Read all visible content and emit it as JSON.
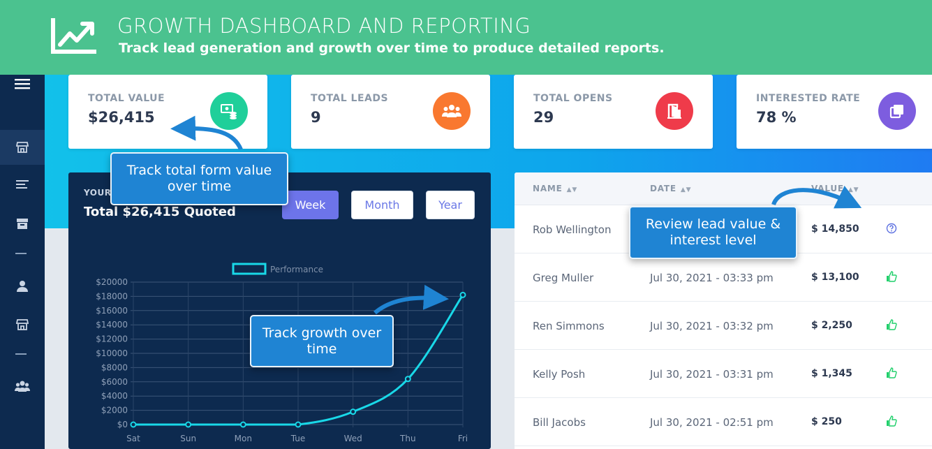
{
  "banner": {
    "title": "GROWTH DASHBOARD AND REPORTING",
    "subtitle": "Track lead generation and growth over time to produce detailed reports.",
    "icon": "chart-growth-icon"
  },
  "sidebar": {
    "items": [
      "menu-icon",
      "store-icon",
      "list-icon",
      "archive-icon",
      "user-icon",
      "store-icon",
      "users-icon"
    ],
    "active_index": 1
  },
  "stats": [
    {
      "label": "TOTAL VALUE",
      "value": "$26,415",
      "icon": "money-stack-icon",
      "color": "#1fcf9a"
    },
    {
      "label": "TOTAL LEADS",
      "value": "9",
      "icon": "users-icon",
      "color": "#f9782f"
    },
    {
      "label": "TOTAL OPENS",
      "value": "29",
      "icon": "door-open-icon",
      "color": "#ef3b4a"
    },
    {
      "label": "INTERESTED RATE",
      "value": "78 %",
      "icon": "copy-icon",
      "color": "#7d5ddf"
    }
  ],
  "chart_panel": {
    "kicker": "YOUR",
    "heading": "Total $26,415 Quoted",
    "ranges": [
      "Week",
      "Month",
      "Year"
    ],
    "active_range": "Week"
  },
  "chart_data": {
    "type": "line",
    "legend": "Performance",
    "categories": [
      "Sat",
      "Sun",
      "Mon",
      "Tue",
      "Wed",
      "Thu",
      "Fri"
    ],
    "values": [
      0,
      0,
      0,
      0,
      1800,
      6400,
      18200
    ],
    "y_ticks": [
      "$0",
      "$2000",
      "$4000",
      "$6000",
      "$8000",
      "$10000",
      "$12000",
      "$14000",
      "$16000",
      "$18000",
      "$20000"
    ],
    "ylim": [
      0,
      20000
    ],
    "grid": true,
    "line_color": "#19d8e8"
  },
  "table": {
    "columns": [
      "NAME",
      "DATE",
      "VALUE"
    ],
    "rows": [
      {
        "name": "Rob Wellington",
        "date": "",
        "value": "$ 14,850",
        "status": "question"
      },
      {
        "name": "Greg Muller",
        "date": "Jul 30, 2021 - 03:33 pm",
        "value": "$ 13,100",
        "status": "thumbs-up"
      },
      {
        "name": "Ren Simmons",
        "date": "Jul 30, 2021 - 03:32 pm",
        "value": "$ 2,250",
        "status": "thumbs-up"
      },
      {
        "name": "Kelly Posh",
        "date": "Jul 30, 2021 - 03:31 pm",
        "value": "$ 1,345",
        "status": "thumbs-up"
      },
      {
        "name": "Bill Jacobs",
        "date": "Jul 30, 2021 - 02:51 pm",
        "value": "$ 250",
        "status": "thumbs-up"
      }
    ]
  },
  "callouts": {
    "total_value": "Track total form value over time",
    "growth": "Track growth over time",
    "lead_value": "Review lead value & interest level"
  }
}
